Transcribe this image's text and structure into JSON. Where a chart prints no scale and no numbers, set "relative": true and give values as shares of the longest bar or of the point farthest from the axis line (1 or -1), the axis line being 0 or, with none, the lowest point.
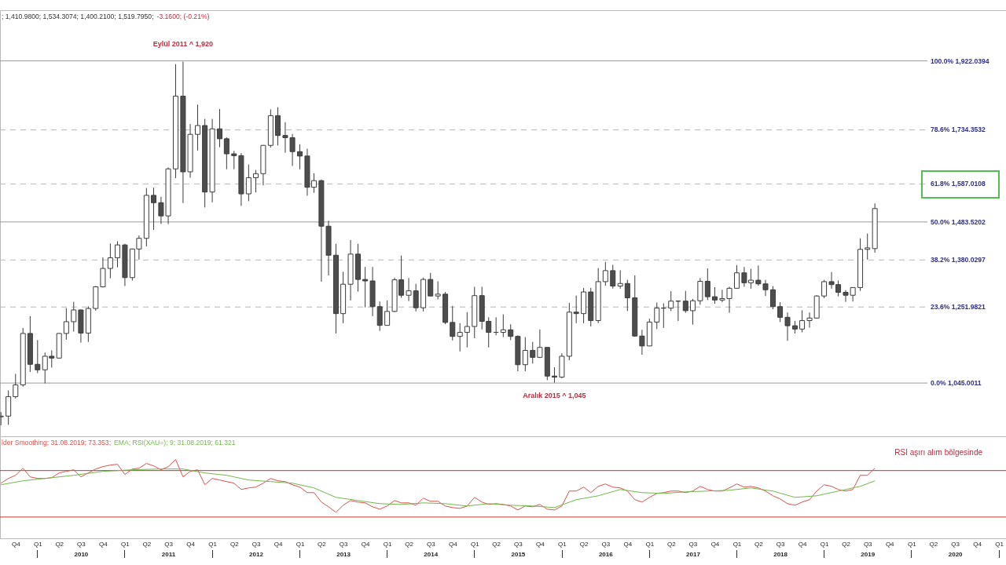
{
  "chart_data": [
    {
      "type": "candlestick",
      "x": [
        "2009-08",
        "2009-09",
        "2009-10",
        "2009-11",
        "2009-12",
        "2010-01",
        "2010-02",
        "2010-03",
        "2010-04",
        "2010-05",
        "2010-06",
        "2010-07",
        "2010-08",
        "2010-09",
        "2010-10",
        "2010-11",
        "2010-12",
        "2011-01",
        "2011-02",
        "2011-03",
        "2011-04",
        "2011-05",
        "2011-06",
        "2011-07",
        "2011-08",
        "2011-09",
        "2011-10",
        "2011-11",
        "2011-12",
        "2012-01",
        "2012-02",
        "2012-03",
        "2012-04",
        "2012-05",
        "2012-06",
        "2012-07",
        "2012-08",
        "2012-09",
        "2012-10",
        "2012-11",
        "2012-12",
        "2013-01",
        "2013-02",
        "2013-03",
        "2013-04",
        "2013-05",
        "2013-06",
        "2013-07",
        "2013-08",
        "2013-09",
        "2013-10",
        "2013-11",
        "2013-12",
        "2014-01",
        "2014-02",
        "2014-03",
        "2014-04",
        "2014-05",
        "2014-06",
        "2014-07",
        "2014-08",
        "2014-09",
        "2014-10",
        "2014-11",
        "2014-12",
        "2015-01",
        "2015-02",
        "2015-03",
        "2015-04",
        "2015-05",
        "2015-06",
        "2015-07",
        "2015-08",
        "2015-09",
        "2015-10",
        "2015-11",
        "2015-12",
        "2016-01",
        "2016-02",
        "2016-03",
        "2016-04",
        "2016-05",
        "2016-06",
        "2016-07",
        "2016-08",
        "2016-09",
        "2016-10",
        "2016-11",
        "2016-12",
        "2017-01",
        "2017-02",
        "2017-03",
        "2017-04",
        "2017-05",
        "2017-06",
        "2017-07",
        "2017-08",
        "2017-09",
        "2017-10",
        "2017-11",
        "2017-12",
        "2018-01",
        "2018-02",
        "2018-03",
        "2018-04",
        "2018-05",
        "2018-06",
        "2018-07",
        "2018-08",
        "2018-09",
        "2018-10",
        "2018-11",
        "2018-12",
        "2019-01",
        "2019-02",
        "2019-03",
        "2019-04",
        "2019-05",
        "2019-06",
        "2019-07",
        "2019-08"
      ],
      "ohlc": [
        [
          953,
          966,
          930,
          955
        ],
        [
          955,
          1025,
          931,
          1008
        ],
        [
          1008,
          1070,
          1003,
          1040
        ],
        [
          1040,
          1195,
          1035,
          1180
        ],
        [
          1180,
          1227,
          1075,
          1096
        ],
        [
          1096,
          1162,
          1072,
          1081
        ],
        [
          1081,
          1128,
          1044,
          1118
        ],
        [
          1118,
          1134,
          1087,
          1113
        ],
        [
          1113,
          1181,
          1112,
          1180
        ],
        [
          1180,
          1249,
          1163,
          1212
        ],
        [
          1212,
          1266,
          1185,
          1244
        ],
        [
          1244,
          1245,
          1155,
          1181
        ],
        [
          1181,
          1254,
          1157,
          1248
        ],
        [
          1248,
          1309,
          1242,
          1307
        ],
        [
          1307,
          1387,
          1305,
          1357
        ],
        [
          1357,
          1425,
          1330,
          1386
        ],
        [
          1386,
          1431,
          1360,
          1421
        ],
        [
          1421,
          1424,
          1309,
          1332
        ],
        [
          1332,
          1411,
          1324,
          1410
        ],
        [
          1410,
          1447,
          1381,
          1439
        ],
        [
          1439,
          1576,
          1417,
          1556
        ],
        [
          1556,
          1577,
          1462,
          1536
        ],
        [
          1536,
          1552,
          1478,
          1500
        ],
        [
          1500,
          1632,
          1478,
          1628
        ],
        [
          1628,
          1913,
          1603,
          1826
        ],
        [
          1826,
          1920,
          1535,
          1620
        ],
        [
          1620,
          1750,
          1604,
          1722
        ],
        [
          1722,
          1803,
          1678,
          1746
        ],
        [
          1746,
          1764,
          1523,
          1565
        ],
        [
          1565,
          1764,
          1537,
          1737
        ],
        [
          1737,
          1791,
          1687,
          1710
        ],
        [
          1710,
          1714,
          1627,
          1669
        ],
        [
          1669,
          1677,
          1627,
          1664
        ],
        [
          1664,
          1671,
          1527,
          1560
        ],
        [
          1560,
          1640,
          1540,
          1604
        ],
        [
          1604,
          1625,
          1564,
          1615
        ],
        [
          1615,
          1693,
          1583,
          1692
        ],
        [
          1692,
          1790,
          1686,
          1773
        ],
        [
          1773,
          1796,
          1692,
          1719
        ],
        [
          1719,
          1755,
          1672,
          1713
        ],
        [
          1713,
          1723,
          1636,
          1675
        ],
        [
          1675,
          1695,
          1627,
          1663
        ],
        [
          1663,
          1683,
          1555,
          1578
        ],
        [
          1578,
          1616,
          1563,
          1596
        ],
        [
          1596,
          1599,
          1321,
          1472
        ],
        [
          1472,
          1487,
          1338,
          1393
        ],
        [
          1393,
          1424,
          1180,
          1234
        ],
        [
          1234,
          1348,
          1208,
          1314
        ],
        [
          1314,
          1434,
          1270,
          1396
        ],
        [
          1396,
          1424,
          1294,
          1327
        ],
        [
          1327,
          1361,
          1251,
          1323
        ],
        [
          1323,
          1361,
          1227,
          1253
        ],
        [
          1253,
          1267,
          1187,
          1202
        ],
        [
          1202,
          1270,
          1202,
          1240
        ],
        [
          1240,
          1332,
          1238,
          1326
        ],
        [
          1326,
          1392,
          1277,
          1284
        ],
        [
          1284,
          1331,
          1268,
          1296
        ],
        [
          1296,
          1315,
          1240,
          1250
        ],
        [
          1250,
          1332,
          1240,
          1327
        ],
        [
          1327,
          1345,
          1282,
          1282
        ],
        [
          1282,
          1322,
          1273,
          1287
        ],
        [
          1287,
          1293,
          1205,
          1210
        ],
        [
          1210,
          1255,
          1161,
          1172
        ],
        [
          1172,
          1208,
          1131,
          1183
        ],
        [
          1183,
          1238,
          1142,
          1199
        ],
        [
          1199,
          1307,
          1167,
          1283
        ],
        [
          1283,
          1307,
          1191,
          1213
        ],
        [
          1213,
          1224,
          1142,
          1183
        ],
        [
          1183,
          1224,
          1175,
          1183
        ],
        [
          1183,
          1232,
          1170,
          1190
        ],
        [
          1190,
          1205,
          1162,
          1172
        ],
        [
          1172,
          1175,
          1077,
          1095
        ],
        [
          1095,
          1170,
          1077,
          1134
        ],
        [
          1134,
          1157,
          1098,
          1115
        ],
        [
          1115,
          1191,
          1113,
          1142
        ],
        [
          1142,
          1142,
          1053,
          1064
        ],
        [
          1064,
          1088,
          1046,
          1061
        ],
        [
          1061,
          1126,
          1058,
          1118
        ],
        [
          1118,
          1263,
          1107,
          1238
        ],
        [
          1238,
          1283,
          1208,
          1234
        ],
        [
          1234,
          1304,
          1208,
          1293
        ],
        [
          1293,
          1304,
          1199,
          1215
        ],
        [
          1215,
          1358,
          1208,
          1321
        ],
        [
          1321,
          1375,
          1310,
          1351
        ],
        [
          1351,
          1367,
          1302,
          1309
        ],
        [
          1309,
          1352,
          1302,
          1316
        ],
        [
          1316,
          1326,
          1241,
          1277
        ],
        [
          1277,
          1338,
          1171,
          1173
        ],
        [
          1173,
          1190,
          1122,
          1146
        ],
        [
          1146,
          1220,
          1146,
          1211
        ],
        [
          1211,
          1264,
          1192,
          1249
        ],
        [
          1249,
          1262,
          1195,
          1249
        ],
        [
          1249,
          1295,
          1241,
          1268
        ],
        [
          1268,
          1269,
          1214,
          1268
        ],
        [
          1268,
          1296,
          1236,
          1242
        ],
        [
          1242,
          1274,
          1204,
          1269
        ],
        [
          1269,
          1331,
          1258,
          1322
        ],
        [
          1322,
          1357,
          1271,
          1280
        ],
        [
          1280,
          1306,
          1261,
          1271
        ],
        [
          1271,
          1299,
          1265,
          1275
        ],
        [
          1275,
          1307,
          1236,
          1303
        ],
        [
          1303,
          1366,
          1303,
          1345
        ],
        [
          1345,
          1361,
          1307,
          1318
        ],
        [
          1318,
          1356,
          1302,
          1325
        ],
        [
          1325,
          1365,
          1310,
          1315
        ],
        [
          1315,
          1326,
          1282,
          1299
        ],
        [
          1299,
          1309,
          1246,
          1253
        ],
        [
          1253,
          1265,
          1211,
          1224
        ],
        [
          1224,
          1237,
          1160,
          1201
        ],
        [
          1201,
          1214,
          1180,
          1192
        ],
        [
          1192,
          1243,
          1183,
          1215
        ],
        [
          1215,
          1237,
          1196,
          1222
        ],
        [
          1222,
          1284,
          1221,
          1282
        ],
        [
          1282,
          1326,
          1276,
          1321
        ],
        [
          1321,
          1347,
          1302,
          1313
        ],
        [
          1313,
          1324,
          1281,
          1292
        ],
        [
          1292,
          1298,
          1266,
          1284
        ],
        [
          1284,
          1306,
          1267,
          1305
        ],
        [
          1305,
          1439,
          1296,
          1409
        ],
        [
          1409,
          1452,
          1381,
          1413
        ],
        [
          1411,
          1534,
          1400,
          1520
        ]
      ],
      "colors": [
        "#ffffff",
        "#ffffff",
        "#ffffff",
        "#ffffff",
        "#4d4d4d",
        "#4d4d4d",
        "#ffffff",
        "#4d4d4d",
        "#ffffff",
        "#ffffff",
        "#ffffff",
        "#4d4d4d",
        "#ffffff",
        "#ffffff",
        "#ffffff",
        "#ffffff",
        "#ffffff",
        "#4d4d4d",
        "#ffffff",
        "#ffffff",
        "#ffffff",
        "#4d4d4d",
        "#4d4d4d",
        "#ffffff",
        "#ffffff",
        "#4d4d4d",
        "#ffffff",
        "#ffffff",
        "#4d4d4d",
        "#ffffff",
        "#4d4d4d",
        "#4d4d4d",
        "#4d4d4d",
        "#4d4d4d",
        "#ffffff",
        "#ffffff",
        "#ffffff",
        "#ffffff",
        "#4d4d4d",
        "#4d4d4d",
        "#4d4d4d",
        "#4d4d4d",
        "#4d4d4d",
        "#ffffff",
        "#4d4d4d",
        "#4d4d4d",
        "#4d4d4d",
        "#ffffff",
        "#ffffff",
        "#4d4d4d",
        "#4d4d4d",
        "#4d4d4d",
        "#4d4d4d",
        "#ffffff",
        "#ffffff",
        "#4d4d4d",
        "#ffffff",
        "#4d4d4d",
        "#ffffff",
        "#4d4d4d",
        "#ffffff",
        "#4d4d4d",
        "#4d4d4d",
        "#ffffff",
        "#ffffff",
        "#ffffff",
        "#4d4d4d",
        "#4d4d4d",
        "#3c3c3c",
        "#ffffff",
        "#4d4d4d",
        "#4d4d4d",
        "#ffffff",
        "#4d4d4d",
        "#ffffff",
        "#4d4d4d",
        "#4d4d4d",
        "#ffffff",
        "#ffffff",
        "#4d4d4d",
        "#ffffff",
        "#4d4d4d",
        "#ffffff",
        "#ffffff",
        "#4d4d4d",
        "#ffffff",
        "#4d4d4d",
        "#4d4d4d",
        "#4d4d4d",
        "#ffffff",
        "#ffffff",
        "#3c3c3c",
        "#ffffff",
        "#3c3c3c",
        "#4d4d4d",
        "#ffffff",
        "#ffffff",
        "#4d4d4d",
        "#4d4d4d",
        "#ffffff",
        "#ffffff",
        "#ffffff",
        "#4d4d4d",
        "#ffffff",
        "#4d4d4d",
        "#4d4d4d",
        "#4d4d4d",
        "#4d4d4d",
        "#4d4d4d",
        "#4d4d4d",
        "#ffffff",
        "#ffffff",
        "#ffffff",
        "#ffffff",
        "#4d4d4d",
        "#4d4d4d",
        "#4d4d4d",
        "#ffffff",
        "#ffffff",
        "#ffffff",
        "#ffffff"
      ],
      "xlim": [
        "2009-07-28",
        "2021-01-30"
      ],
      "ylim": [
        900,
        2060
      ],
      "tick_labels": false,
      "ref_lines": [
        {
          "axis": "y",
          "value": 1922.0394,
          "label": "100.0% 1,922.0394",
          "color": "#9a9a9a",
          "line_style": "solid"
        },
        {
          "axis": "y",
          "value": 1734.3532,
          "label": "78.6% 1,734.3532",
          "color": "#b8b8b8",
          "line_style": "dashed"
        },
        {
          "axis": "y",
          "value": 1587.0108,
          "label": "61.8% 1,587.0108",
          "color": "#b8b8b8",
          "line_style": "dashed"
        },
        {
          "axis": "y",
          "value": 1483.5202,
          "label": "50.0% 1,483.5202",
          "color": "#9a9a9a",
          "line_style": "solid"
        },
        {
          "axis": "y",
          "value": 1380.0297,
          "label": "38.2% 1,380.0297",
          "color": "#b8b8b8",
          "line_style": "dashed"
        },
        {
          "axis": "y",
          "value": 1251.9821,
          "label": "23.6% 1,251.9821",
          "color": "#b8b8b8",
          "line_style": "dashed"
        },
        {
          "axis": "y",
          "value": 1045.0011,
          "label": "0.0% 1,045.0011",
          "color": "#9a9a9a",
          "line_style": "solid"
        }
      ],
      "annotations": [
        "; 1,410.9800; 1,534.3074; 1,400.2100; 1,519.7950;",
        "-3.1600; (-0.21%)",
        {
          "text": "Eylül 2011 ^ 1,920",
          "x": "2011-09",
          "y": 1920
        },
        {
          "text": "Aralık 2015 ^ 1,045",
          "x": "2015-12",
          "y": 1045
        }
      ]
    },
    {
      "type": "line",
      "relative": true,
      "tick_labels": "x",
      "legend": "top left",
      "xlim": [
        "2009-07-28",
        "2021-01-30"
      ],
      "xticks": [
        {
          "value": "2009-10",
          "label": "Q4"
        },
        {
          "value": "2010-01",
          "label": "Q1"
        },
        {
          "value": "2010-04",
          "label": "Q2"
        },
        {
          "value": "2010-07",
          "label": "Q3"
        },
        {
          "value": "2010-10",
          "label": "Q4"
        },
        {
          "value": "2011-01",
          "label": "Q1"
        },
        {
          "value": "2011-04",
          "label": "Q2"
        },
        {
          "value": "2011-07",
          "label": "Q3"
        },
        {
          "value": "2011-10",
          "label": "Q4"
        },
        {
          "value": "2012-01",
          "label": "Q1"
        },
        {
          "value": "2012-04",
          "label": "Q2"
        },
        {
          "value": "2012-07",
          "label": "Q3"
        },
        {
          "value": "2012-10",
          "label": "Q4"
        },
        {
          "value": "2013-01",
          "label": "Q1"
        },
        {
          "value": "2013-04",
          "label": "Q2"
        },
        {
          "value": "2013-07",
          "label": "Q3"
        },
        {
          "value": "2013-10",
          "label": "Q4"
        },
        {
          "value": "2014-01",
          "label": "Q1"
        },
        {
          "value": "2014-04",
          "label": "Q2"
        },
        {
          "value": "2014-07",
          "label": "Q3"
        },
        {
          "value": "2014-10",
          "label": "Q4"
        },
        {
          "value": "2015-01",
          "label": "Q1"
        },
        {
          "value": "2015-04",
          "label": "Q2"
        },
        {
          "value": "2015-07",
          "label": "Q3"
        },
        {
          "value": "2015-10",
          "label": "Q4"
        },
        {
          "value": "2016-01",
          "label": "Q1"
        },
        {
          "value": "2016-04",
          "label": "Q2"
        },
        {
          "value": "2016-07",
          "label": "Q3"
        },
        {
          "value": "2016-10",
          "label": "Q4"
        },
        {
          "value": "2017-01",
          "label": "Q1"
        },
        {
          "value": "2017-04",
          "label": "Q2"
        },
        {
          "value": "2017-07",
          "label": "Q3"
        },
        {
          "value": "2017-10",
          "label": "Q4"
        },
        {
          "value": "2018-01",
          "label": "Q1"
        },
        {
          "value": "2018-04",
          "label": "Q2"
        },
        {
          "value": "2018-07",
          "label": "Q3"
        },
        {
          "value": "2018-10",
          "label": "Q4"
        },
        {
          "value": "2019-01",
          "label": "Q1"
        },
        {
          "value": "2019-04",
          "label": "Q2"
        },
        {
          "value": "2019-07",
          "label": "Q3"
        },
        {
          "value": "2019-10",
          "label": "Q4"
        },
        {
          "value": "2020-01",
          "label": "Q1"
        },
        {
          "value": "2020-04",
          "label": "Q2"
        },
        {
          "value": "2020-07",
          "label": "Q3"
        },
        {
          "value": "2020-10",
          "label": "Q4"
        },
        {
          "value": "2021-01",
          "label": "Q1"
        }
      ],
      "x2lim": [
        "2009-07-28",
        "2021-01-30"
      ],
      "x2ticks": [
        {
          "value": "2010-07",
          "label": "2010"
        },
        {
          "value": "2011-07",
          "label": "2011"
        },
        {
          "value": "2012-07",
          "label": "2012"
        },
        {
          "value": "2013-07",
          "label": "2013"
        },
        {
          "value": "2014-07",
          "label": "2014"
        },
        {
          "value": "2015-07",
          "label": "2015"
        },
        {
          "value": "2016-07",
          "label": "2016"
        },
        {
          "value": "2017-07",
          "label": "2017"
        },
        {
          "value": "2018-07",
          "label": "2018"
        },
        {
          "value": "2019-07",
          "label": "2019"
        },
        {
          "value": "2020-07",
          "label": "2020"
        }
      ],
      "series": [
        {
          "name": "lder Smoothing; 31.08.2019; 73.353;",
          "color": "#e0504c",
          "x": [
            "2009-08",
            "2009-09",
            "2009-10",
            "2009-11",
            "2009-12",
            "2010-01",
            "2010-02",
            "2010-03",
            "2010-04",
            "2010-05",
            "2010-06",
            "2010-07",
            "2010-08",
            "2010-09",
            "2010-10",
            "2010-11",
            "2010-12",
            "2011-01",
            "2011-02",
            "2011-03",
            "2011-04",
            "2011-05",
            "2011-06",
            "2011-07",
            "2011-08",
            "2011-09",
            "2011-10",
            "2011-11",
            "2011-12",
            "2012-01",
            "2012-02",
            "2012-03",
            "2012-04",
            "2012-05",
            "2012-06",
            "2012-07",
            "2012-08",
            "2012-09",
            "2012-10",
            "2012-11",
            "2012-12",
            "2013-01",
            "2013-02",
            "2013-03",
            "2013-04",
            "2013-05",
            "2013-06",
            "2013-07",
            "2013-08",
            "2013-09",
            "2013-10",
            "2013-11",
            "2013-12",
            "2014-01",
            "2014-02",
            "2014-03",
            "2014-04",
            "2014-05",
            "2014-06",
            "2014-07",
            "2014-08",
            "2014-09",
            "2014-10",
            "2014-11",
            "2014-12",
            "2015-01",
            "2015-02",
            "2015-03",
            "2015-04",
            "2015-05",
            "2015-06",
            "2015-07",
            "2015-08",
            "2015-09",
            "2015-10",
            "2015-11",
            "2015-12",
            "2016-01",
            "2016-02",
            "2016-03",
            "2016-04",
            "2016-05",
            "2016-06",
            "2016-07",
            "2016-08",
            "2016-09",
            "2016-10",
            "2016-11",
            "2016-12",
            "2017-01",
            "2017-02",
            "2017-03",
            "2017-04",
            "2017-05",
            "2017-06",
            "2017-07",
            "2017-08",
            "2017-09",
            "2017-10",
            "2017-11",
            "2017-12",
            "2018-01",
            "2018-02",
            "2018-03",
            "2018-04",
            "2018-05",
            "2018-06",
            "2018-07",
            "2018-08",
            "2018-09",
            "2018-10",
            "2018-11",
            "2018-12",
            "2019-01",
            "2019-02",
            "2019-03",
            "2019-04",
            "2019-05",
            "2019-06",
            "2019-07",
            "2019-08"
          ],
          "values": [
            0.7,
            0.76,
            0.8,
            0.89,
            0.78,
            0.76,
            0.76,
            0.77,
            0.83,
            0.85,
            0.87,
            0.78,
            0.83,
            0.88,
            0.91,
            0.93,
            0.94,
            0.81,
            0.88,
            0.89,
            0.95,
            0.92,
            0.87,
            0.91,
            1.0,
            0.78,
            0.85,
            0.87,
            0.68,
            0.76,
            0.74,
            0.72,
            0.7,
            0.62,
            0.64,
            0.65,
            0.7,
            0.76,
            0.73,
            0.72,
            0.68,
            0.65,
            0.58,
            0.58,
            0.46,
            0.4,
            0.33,
            0.42,
            0.48,
            0.46,
            0.45,
            0.4,
            0.37,
            0.41,
            0.48,
            0.45,
            0.45,
            0.42,
            0.51,
            0.47,
            0.47,
            0.41,
            0.39,
            0.38,
            0.41,
            0.52,
            0.46,
            0.43,
            0.44,
            0.43,
            0.41,
            0.36,
            0.41,
            0.4,
            0.43,
            0.37,
            0.36,
            0.41,
            0.6,
            0.6,
            0.65,
            0.58,
            0.66,
            0.69,
            0.65,
            0.64,
            0.6,
            0.49,
            0.46,
            0.52,
            0.57,
            0.58,
            0.6,
            0.6,
            0.58,
            0.6,
            0.66,
            0.62,
            0.6,
            0.6,
            0.64,
            0.69,
            0.65,
            0.66,
            0.64,
            0.6,
            0.54,
            0.5,
            0.44,
            0.42,
            0.46,
            0.49,
            0.6,
            0.68,
            0.66,
            0.62,
            0.6,
            0.62,
            0.8,
            0.8,
            0.89
          ]
        },
        {
          "name": "EMA; RSI(XAU=); 9; 31.08.2019; 61.321",
          "color": "#72b84e",
          "x": [
            "2009-08",
            "2009-11",
            "2010-02",
            "2010-06",
            "2010-10",
            "2011-02",
            "2011-06",
            "2011-09",
            "2011-12",
            "2012-03",
            "2012-06",
            "2012-09",
            "2012-12",
            "2013-03",
            "2013-06",
            "2013-09",
            "2013-12",
            "2014-03",
            "2014-06",
            "2014-09",
            "2014-12",
            "2015-03",
            "2015-06",
            "2015-09",
            "2015-12",
            "2016-03",
            "2016-06",
            "2016-09",
            "2016-12",
            "2017-03",
            "2017-06",
            "2017-09",
            "2017-12",
            "2018-03",
            "2018-06",
            "2018-09",
            "2018-12",
            "2019-03",
            "2019-06",
            "2019-08"
          ],
          "values": [
            0.68,
            0.73,
            0.76,
            0.8,
            0.85,
            0.87,
            0.88,
            0.88,
            0.83,
            0.8,
            0.74,
            0.72,
            0.7,
            0.64,
            0.52,
            0.48,
            0.44,
            0.43,
            0.45,
            0.44,
            0.41,
            0.44,
            0.42,
            0.41,
            0.39,
            0.49,
            0.54,
            0.62,
            0.58,
            0.57,
            0.59,
            0.6,
            0.61,
            0.64,
            0.6,
            0.52,
            0.54,
            0.6,
            0.66,
            0.73
          ]
        }
      ],
      "ref_lines": [
        {
          "axis": "y",
          "value": 0.86,
          "color": "#c0392b"
        },
        {
          "axis": "y",
          "value": 0.27,
          "color": "#c0392b"
        }
      ],
      "annotations": [
        "RSI aşırı alım bölgesinde"
      ]
    }
  ]
}
